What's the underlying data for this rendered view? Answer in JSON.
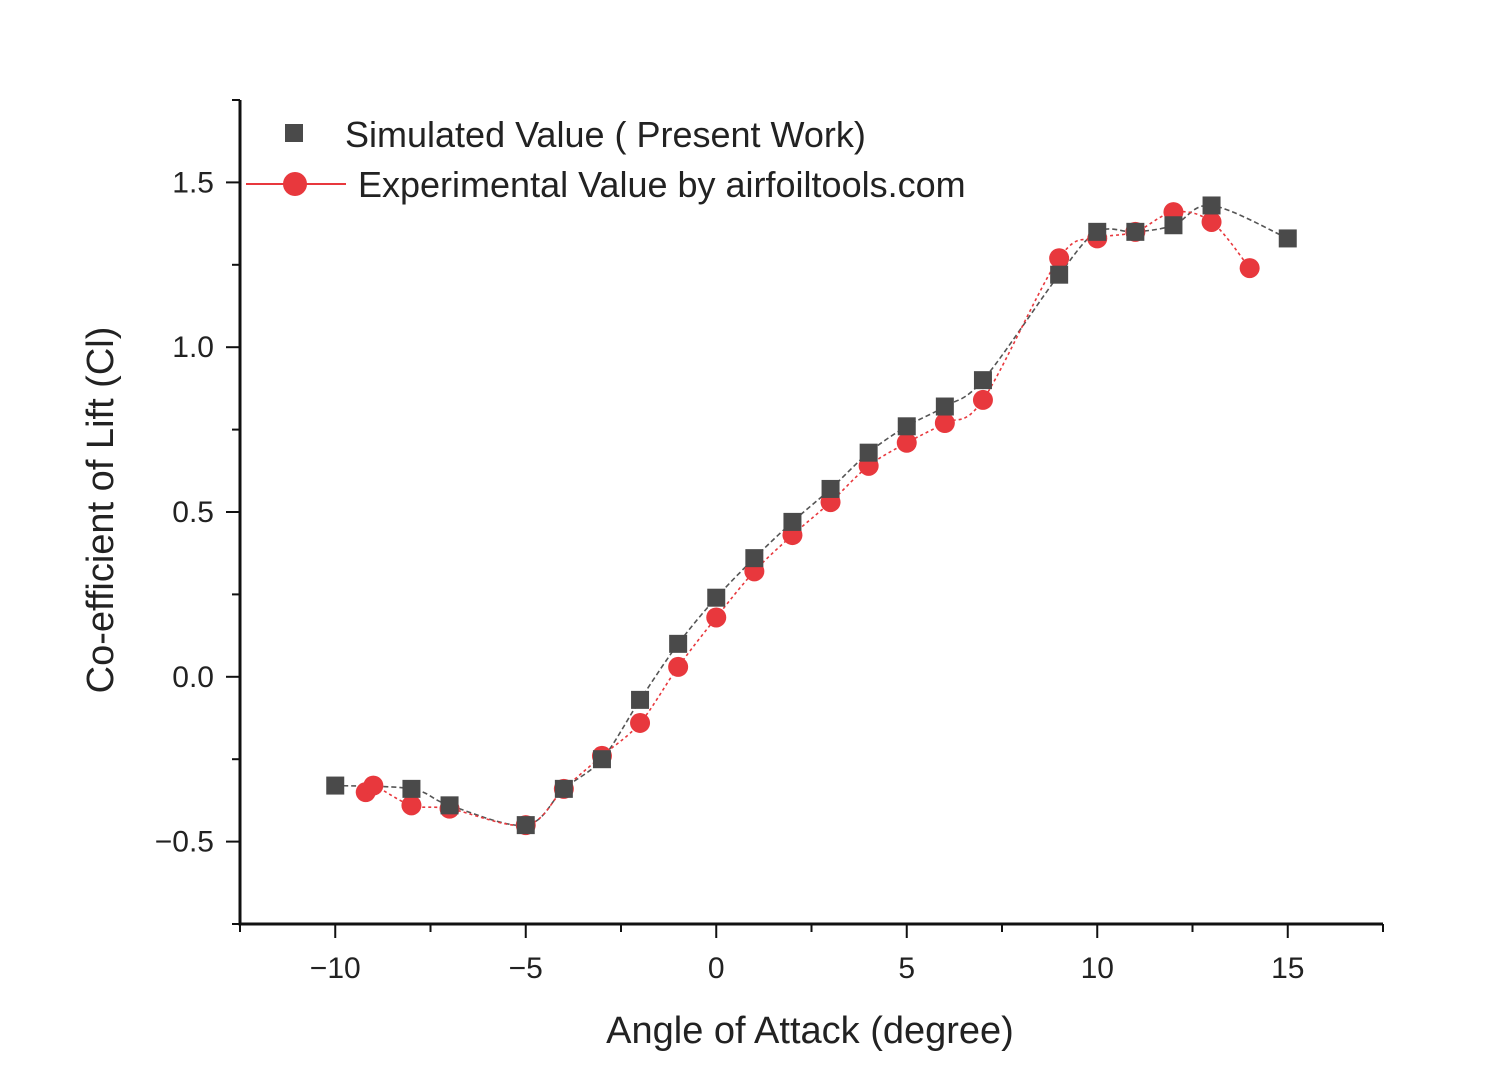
{
  "chart_data": {
    "type": "line",
    "title": "",
    "xlabel": "Angle of Attack (degree)",
    "ylabel": "Co-efficient of Lift (Cl)",
    "xlim": [
      -12.5,
      17.5
    ],
    "ylim": [
      -0.75,
      1.75
    ],
    "x_ticks": [
      -10,
      -5,
      0,
      5,
      10,
      15
    ],
    "x_tick_labels": [
      "−10",
      "−5",
      "0",
      "5",
      "10",
      "15"
    ],
    "y_ticks": [
      -0.5,
      0.0,
      0.5,
      1.0,
      1.5
    ],
    "y_tick_labels": [
      "−0.5",
      "0.0",
      "0.5",
      "1.0",
      "1.5"
    ],
    "legend_position": "top-left",
    "grid": false,
    "series": [
      {
        "name": "Simulated Value ( Present Work)",
        "marker": "square",
        "color": "#4a4a4a",
        "line_color": "#555555",
        "points": [
          [
            -10,
            -0.33
          ],
          [
            -8,
            -0.34
          ],
          [
            -7,
            -0.39
          ],
          [
            -5,
            -0.45
          ],
          [
            -4,
            -0.34
          ],
          [
            -3,
            -0.25
          ],
          [
            -2,
            -0.07
          ],
          [
            -1,
            0.1
          ],
          [
            0,
            0.24
          ],
          [
            1,
            0.36
          ],
          [
            2,
            0.47
          ],
          [
            3,
            0.57
          ],
          [
            4,
            0.68
          ],
          [
            5,
            0.76
          ],
          [
            6,
            0.82
          ],
          [
            7,
            0.9
          ],
          [
            9,
            1.22
          ],
          [
            10,
            1.35
          ],
          [
            11,
            1.35
          ],
          [
            12,
            1.37
          ],
          [
            13,
            1.43
          ],
          [
            15,
            1.33
          ]
        ]
      },
      {
        "name": "Experimental Value by airfoiltools.com",
        "marker": "circle",
        "color": "#e8383d",
        "line_color": "#e8383d",
        "points": [
          [
            -9.2,
            -0.35
          ],
          [
            -9,
            -0.33
          ],
          [
            -8,
            -0.39
          ],
          [
            -7,
            -0.4
          ],
          [
            -5,
            -0.45
          ],
          [
            -4,
            -0.34
          ],
          [
            -3,
            -0.24
          ],
          [
            -2,
            -0.14
          ],
          [
            -1,
            0.03
          ],
          [
            0,
            0.18
          ],
          [
            1,
            0.32
          ],
          [
            2,
            0.43
          ],
          [
            3,
            0.53
          ],
          [
            4,
            0.64
          ],
          [
            5,
            0.71
          ],
          [
            6,
            0.77
          ],
          [
            7,
            0.84
          ],
          [
            9,
            1.27
          ],
          [
            10,
            1.33
          ],
          [
            11,
            1.35
          ],
          [
            12,
            1.41
          ],
          [
            13,
            1.38
          ],
          [
            14,
            1.24
          ]
        ]
      }
    ]
  }
}
